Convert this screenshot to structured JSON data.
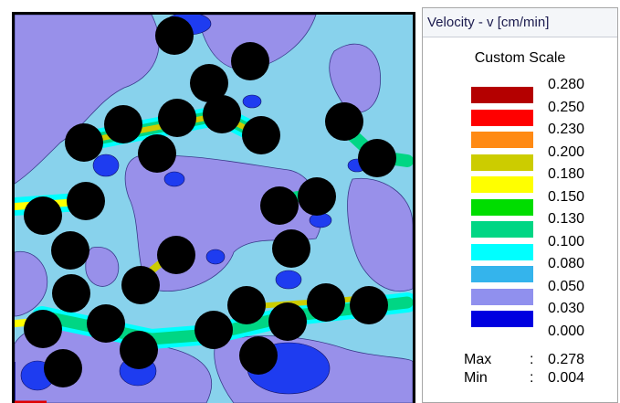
{
  "panel": {
    "title": "Velocity - v [cm/min]",
    "scale_title": "Custom Scale",
    "levels": [
      {
        "value": "0.280",
        "color": "#b40000"
      },
      {
        "value": "0.250",
        "color": "#ff0000"
      },
      {
        "value": "0.230",
        "color": "#ff8a14"
      },
      {
        "value": "0.200",
        "color": "#cccc00"
      },
      {
        "value": "0.180",
        "color": "#ffff00"
      },
      {
        "value": "0.150",
        "color": "#00dd00"
      },
      {
        "value": "0.130",
        "color": "#00d684"
      },
      {
        "value": "0.100",
        "color": "#00ffff"
      },
      {
        "value": "0.080",
        "color": "#34b4ec"
      },
      {
        "value": "0.050",
        "color": "#9090ee"
      },
      {
        "value": "0.030",
        "color": "#0000e0"
      },
      {
        "value": "0.000",
        "color": ""
      }
    ],
    "stats": {
      "max_label": "Max",
      "sep": ":",
      "max_value": "0.278",
      "min_label": "Min",
      "min_value": "0.004"
    }
  },
  "plot": {
    "colors": {
      "background": "#88d2ec",
      "low": "#9890ea",
      "lowest": "#1e3cf0",
      "grain": "#000000"
    }
  }
}
